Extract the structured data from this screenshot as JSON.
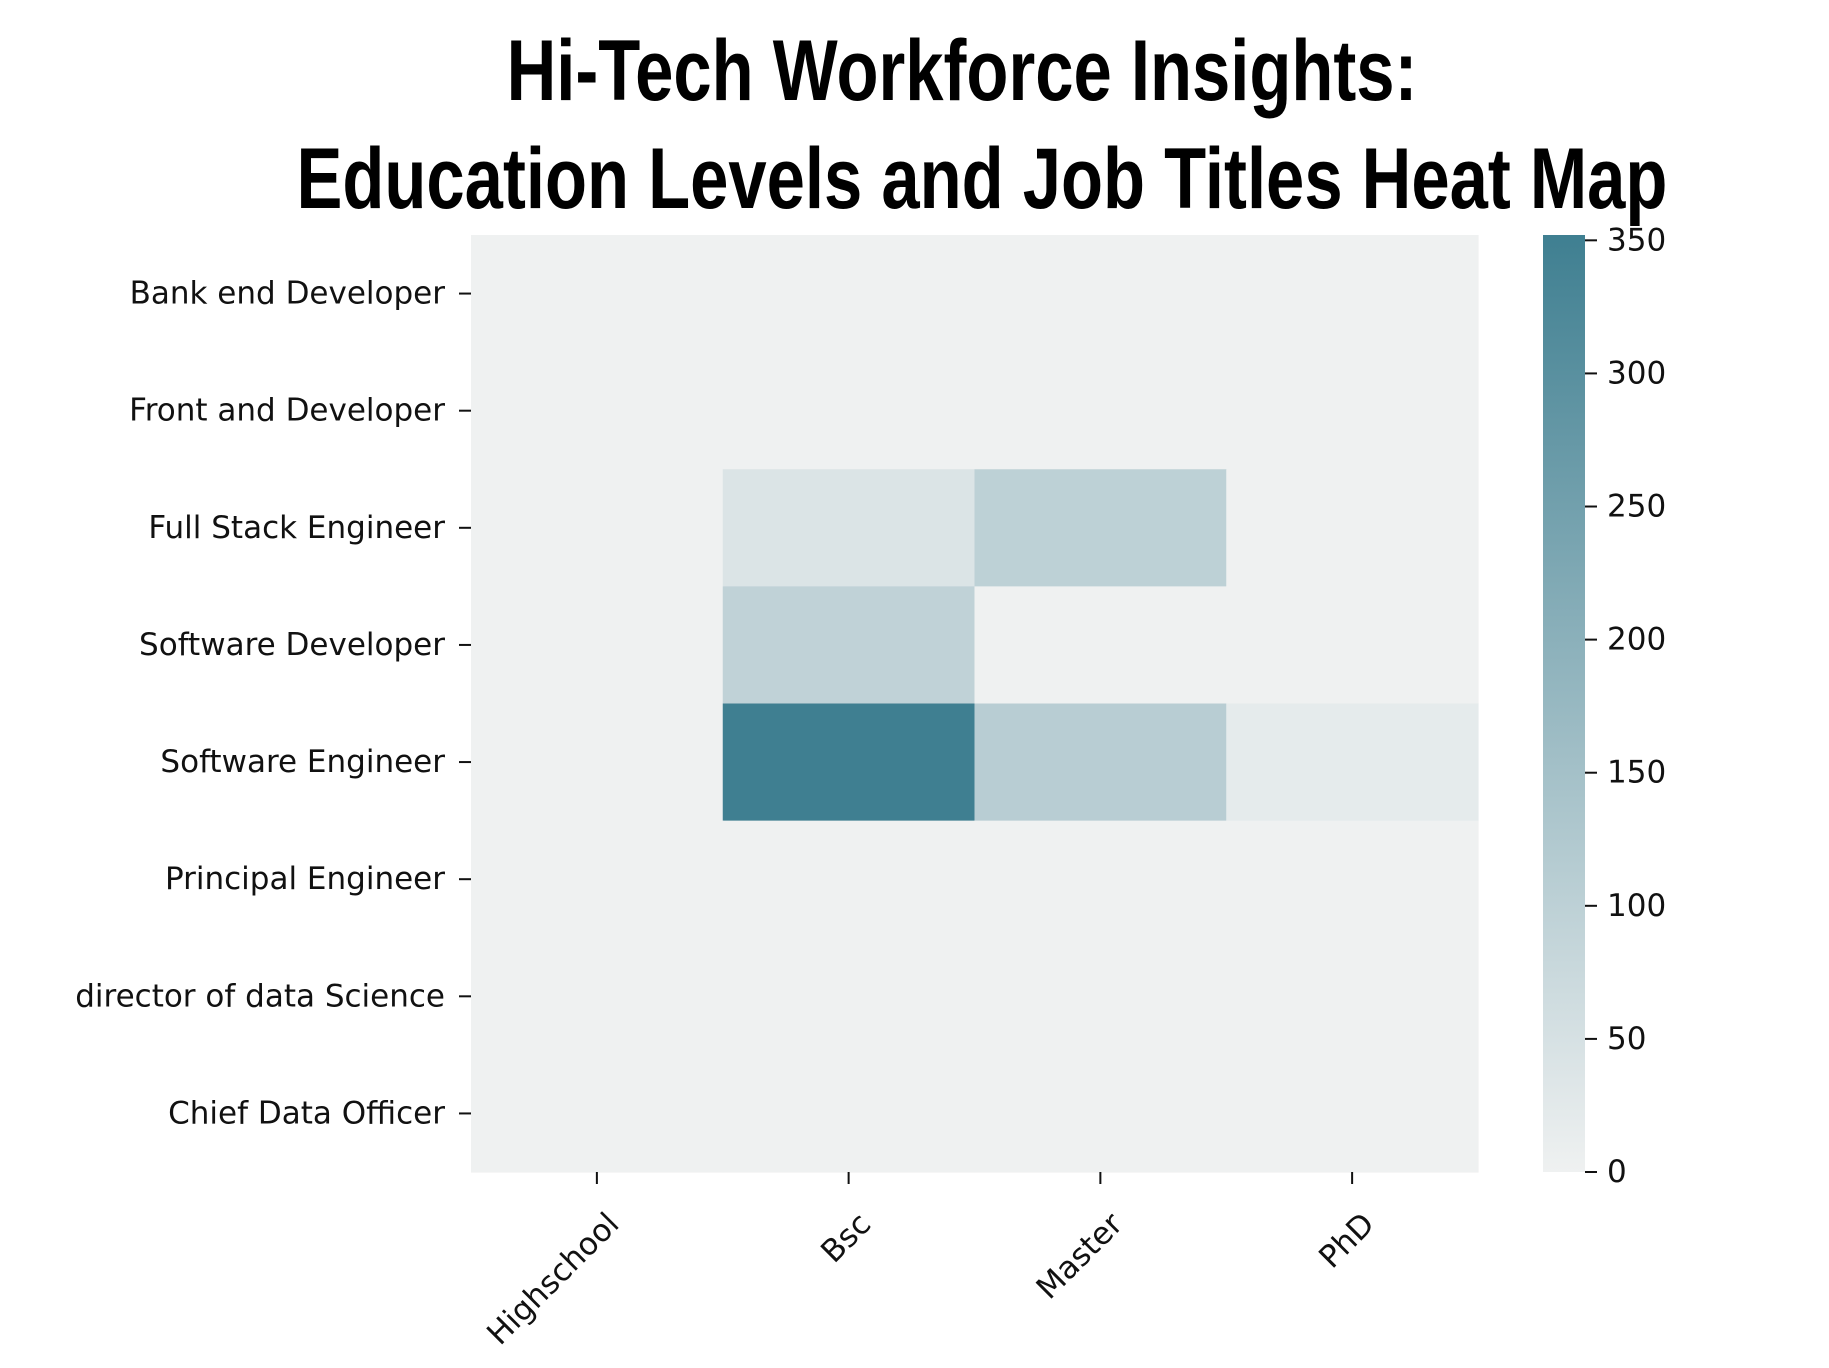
{
  "chart_data": {
    "type": "heatmap",
    "title_lines": [
      "Hi-Tech Workforce Insights:",
      "Education Levels and Job Titles Heat Map"
    ],
    "xlabel": "",
    "ylabel": "",
    "x_categories": [
      "Highschool",
      "Bsc",
      "Master",
      "PhD"
    ],
    "y_categories": [
      "Bank end Developer",
      "Front and Developer",
      "Full Stack Engineer",
      "Software Developer",
      "Software Engineer",
      "Principal Engineer",
      "director of data Science",
      "Chief Data Officer"
    ],
    "values": [
      [
        0,
        0,
        0,
        0
      ],
      [
        0,
        0,
        0,
        0
      ],
      [
        0,
        40,
        100,
        0
      ],
      [
        0,
        95,
        0,
        0
      ],
      [
        0,
        352,
        110,
        20
      ],
      [
        0,
        0,
        0,
        0
      ],
      [
        0,
        0,
        0,
        0
      ],
      [
        0,
        0,
        0,
        0
      ]
    ],
    "colorbar": {
      "min": 0,
      "max": 352,
      "ticks": [
        0,
        50,
        100,
        150,
        200,
        250,
        300,
        350
      ],
      "color_low": "#eff1f1",
      "color_high": "#3f7f91"
    }
  }
}
